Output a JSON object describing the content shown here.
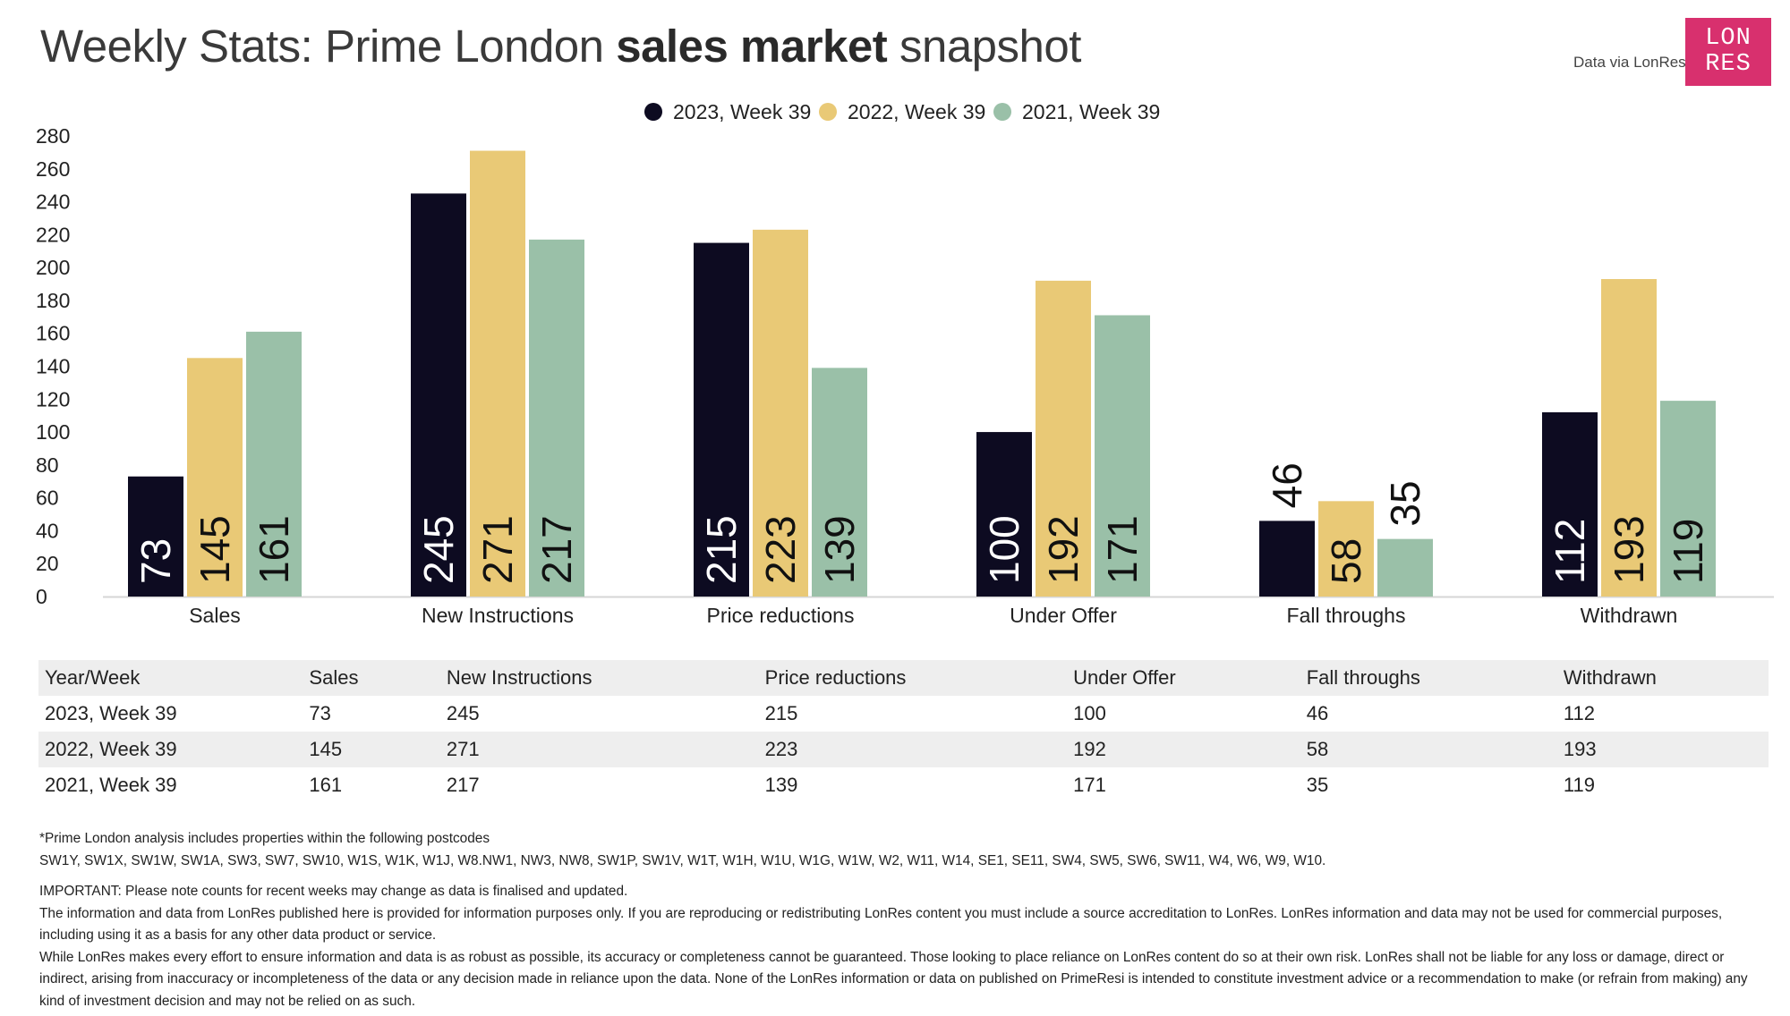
{
  "header": {
    "title_pre": "Weekly Stats: Prime London ",
    "title_bold": "sales market",
    "title_post": " snapshot",
    "source": "Data via LonRes",
    "logo_line1": "LON",
    "logo_line2": "RES"
  },
  "chart_data": {
    "type": "bar",
    "categories": [
      "Sales",
      "New Instructions",
      "Price reductions",
      "Under Offer",
      "Fall throughs",
      "Withdrawn"
    ],
    "series": [
      {
        "name": "2023, Week 39",
        "values": [
          73,
          245,
          215,
          100,
          46,
          112
        ]
      },
      {
        "name": "2022, Week 39",
        "values": [
          145,
          271,
          223,
          192,
          58,
          193
        ]
      },
      {
        "name": "2021, Week 39",
        "values": [
          161,
          217,
          139,
          171,
          35,
          119
        ]
      }
    ],
    "ylim": [
      0,
      280
    ],
    "yticks": [
      0,
      20,
      40,
      60,
      80,
      100,
      120,
      140,
      160,
      180,
      200,
      220,
      240,
      260,
      280
    ],
    "legend_position": "top-center",
    "grid": false,
    "data_labels": true,
    "colors": [
      "#0d0b21",
      "#e9c976",
      "#9ac0a8"
    ]
  },
  "table": {
    "headers": [
      "Year/Week",
      "Sales",
      "New Instructions",
      "Price reductions",
      "Under Offer",
      "Fall throughs",
      "Withdrawn"
    ],
    "rows": [
      [
        "2023, Week 39",
        "73",
        "245",
        "215",
        "100",
        "46",
        "112"
      ],
      [
        "2022, Week 39",
        "145",
        "271",
        "223",
        "192",
        "58",
        "193"
      ],
      [
        "2021, Week 39",
        "161",
        "217",
        "139",
        "171",
        "35",
        "119"
      ]
    ]
  },
  "notes": {
    "postcode_intro": "*Prime London analysis includes properties within the following postcodes",
    "postcodes": "SW1Y, SW1X, SW1W, SW1A, SW3, SW7, SW10, W1S, W1K, W1J, W8.NW1, NW3, NW8, SW1P, SW1V, W1T, W1H, W1U, W1G, W1W, W2, W11, W14, SE1, SE11, SW4, SW5, SW6, SW11, W4, W6, W9, W10.",
    "important": "IMPORTANT: Please note counts for recent weeks may change as data is finalised and updated.",
    "info": "The information and data from LonRes published here is provided for information purposes only. If you are reproducing or redistributing LonRes content you must include a source accreditation to LonRes. LonRes information and data may not be used for commercial purposes, including using it as a basis for any other data product or service.",
    "disclaimer": "While LonRes makes every effort to ensure information and data is as robust as possible, its accuracy or completeness cannot be guaranteed. Those looking to place reliance on LonRes content do so at their own risk. LonRes shall not be liable for any loss or damage, direct or indirect, arising from inaccuracy or incompleteness of the data or any decision made in reliance upon the data. None of the LonRes information or data on published on PrimeResi is intended to constitute investment advice or a recommendation to make (or refrain from making) any kind of investment decision and may not be relied on as such."
  }
}
